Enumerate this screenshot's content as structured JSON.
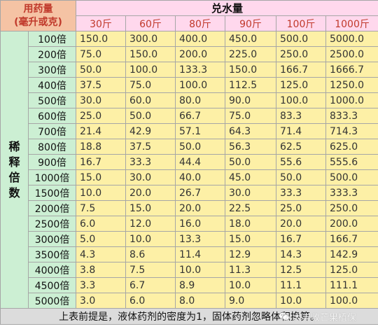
{
  "corner": {
    "line1": "用药量",
    "line2": "(毫升或克)"
  },
  "water_title": "兑水量",
  "water_weights": [
    "30斤",
    "60斤",
    "80斤",
    "90斤",
    "100斤",
    "1000斤"
  ],
  "row_title": [
    "稀",
    "释",
    "倍",
    "数"
  ],
  "rows": [
    {
      "ratio": "100倍",
      "values": [
        "150.0",
        "300.0",
        "400.0",
        "450.0",
        "500.0",
        "5000.0"
      ]
    },
    {
      "ratio": "200倍",
      "values": [
        "75.0",
        "150.0",
        "200.0",
        "225.0",
        "250.0",
        "2500.0"
      ]
    },
    {
      "ratio": "300倍",
      "values": [
        "50.0",
        "100.0",
        "133.3",
        "150.0",
        "166.7",
        "1666.7"
      ]
    },
    {
      "ratio": "400倍",
      "values": [
        "37.5",
        "75.0",
        "100.0",
        "112.5",
        "125.0",
        "1250.0"
      ]
    },
    {
      "ratio": "500倍",
      "values": [
        "30.0",
        "60.0",
        "80.0",
        "90.0",
        "100.0",
        "1000.0"
      ]
    },
    {
      "ratio": "600倍",
      "values": [
        "25.0",
        "50.0",
        "66.7",
        "75.0",
        "83.3",
        "833.3"
      ]
    },
    {
      "ratio": "700倍",
      "values": [
        "21.4",
        "42.9",
        "57.1",
        "64.3",
        "71.4",
        "714.3"
      ]
    },
    {
      "ratio": "800倍",
      "values": [
        "18.8",
        "37.5",
        "50.0",
        "56.3",
        "62.5",
        "625.0"
      ]
    },
    {
      "ratio": "900倍",
      "values": [
        "16.7",
        "33.3",
        "44.4",
        "50.0",
        "55.6",
        "555.6"
      ]
    },
    {
      "ratio": "1000倍",
      "values": [
        "15.0",
        "30.0",
        "40.0",
        "45.0",
        "50.0",
        "500.0"
      ]
    },
    {
      "ratio": "1500倍",
      "values": [
        "10.0",
        "20.0",
        "26.7",
        "30.0",
        "33.3",
        "333.3"
      ]
    },
    {
      "ratio": "2000倍",
      "values": [
        "7.5",
        "15.0",
        "20.0",
        "22.5",
        "25.0",
        "250.0"
      ]
    },
    {
      "ratio": "2500倍",
      "values": [
        "6.0",
        "12.0",
        "16.0",
        "18.0",
        "20.0",
        "200.0"
      ]
    },
    {
      "ratio": "3000倍",
      "values": [
        "5.0",
        "10.0",
        "13.3",
        "15.0",
        "16.7",
        "166.7"
      ]
    },
    {
      "ratio": "3500倍",
      "values": [
        "4.3",
        "8.6",
        "11.4",
        "12.9",
        "14.3",
        "142.9"
      ]
    },
    {
      "ratio": "4000倍",
      "values": [
        "3.8",
        "7.5",
        "10.0",
        "11.3",
        "12.5",
        "125.0"
      ]
    },
    {
      "ratio": "4500倍",
      "values": [
        "3.3",
        "6.7",
        "8.9",
        "10.0",
        "11.1",
        "111.1"
      ]
    },
    {
      "ratio": "5000倍",
      "values": [
        "3.0",
        "6.0",
        "8.0",
        "9.0",
        "10.0",
        "100.0"
      ]
    }
  ],
  "footer_note": "上表前提是，液体药剂的密度为1，固体药剂忽略体积换算。",
  "watermark": {
    "icon": "wechat-icon",
    "text": "大丰收芒果植保"
  }
}
